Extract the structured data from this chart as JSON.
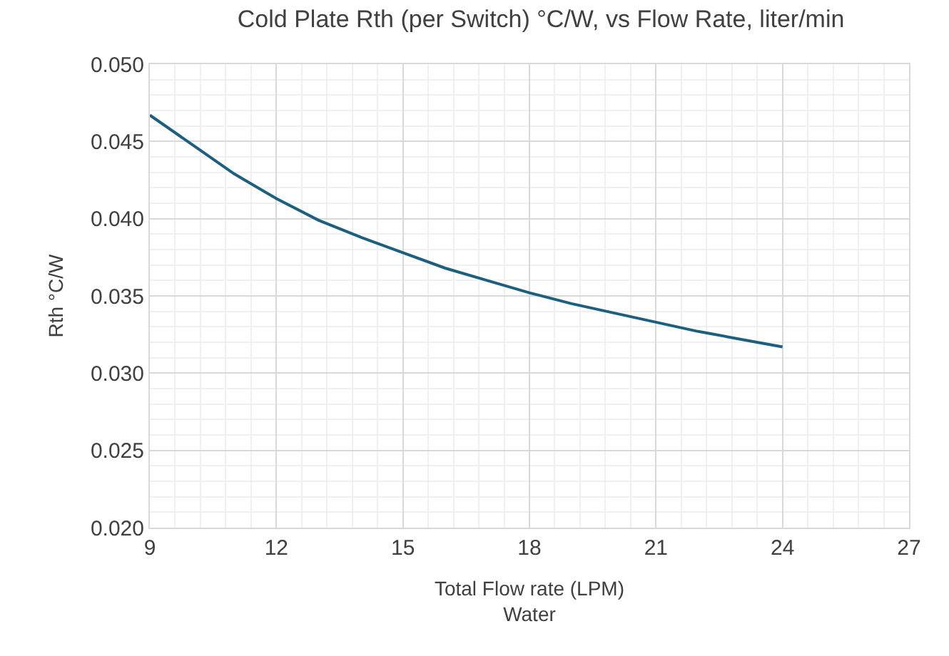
{
  "chart_data": {
    "type": "line",
    "title": "Cold Plate Rth (per Switch) °C/W, vs Flow Rate, liter/min",
    "xlabel": "Total Flow rate (LPM)\nWater",
    "ylabel": "Rth °C/W",
    "x": [
      9,
      10,
      11,
      12,
      13,
      14,
      15,
      16,
      17,
      18,
      19,
      20,
      21,
      22,
      23,
      24
    ],
    "series": [
      {
        "color": "#1c5f7e",
        "values": [
          0.0467,
          0.0448,
          0.0429,
          0.0413,
          0.0399,
          0.0388,
          0.0378,
          0.0368,
          0.036,
          0.0352,
          0.0345,
          0.0339,
          0.0333,
          0.0327,
          0.0322,
          0.0317
        ]
      }
    ],
    "xlim": [
      9,
      27
    ],
    "xticks": [
      9,
      12,
      15,
      18,
      21,
      24,
      27
    ],
    "ylim": [
      0.02,
      0.05
    ],
    "yticks": [
      {
        "value": 0.02,
        "label": "0.020"
      },
      {
        "value": 0.025,
        "label": "0.025"
      },
      {
        "value": 0.03,
        "label": "0.030"
      },
      {
        "value": 0.035,
        "label": "0.035"
      },
      {
        "value": 0.04,
        "label": "0.040"
      },
      {
        "value": 0.045,
        "label": "0.045"
      },
      {
        "value": 0.05,
        "label": "0.050"
      }
    ],
    "grid": true,
    "marker": "none",
    "line_style": "solid"
  }
}
